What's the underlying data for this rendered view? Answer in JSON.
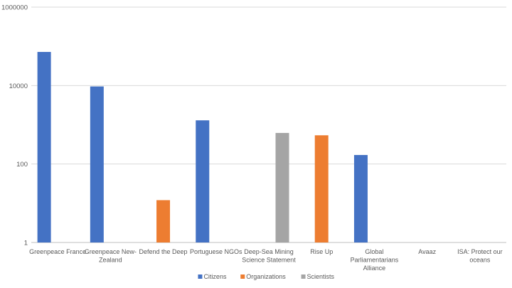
{
  "chart_data": {
    "type": "bar",
    "scale": "log10",
    "title": "",
    "xlabel": "",
    "ylabel": "",
    "ylim": [
      1,
      1000000
    ],
    "y_ticks": [
      "1",
      "100",
      "10000",
      "1000000"
    ],
    "grid": true,
    "legend_position": "bottom",
    "categories": [
      "Greenpeace France",
      "Greenpeace New-Zealand",
      "Defend the Deep",
      "Portuguese NGOs",
      "Deep-Sea Mining Science Statement",
      "Rise Up",
      "Global Parliamentarians Alliance",
      "Avaaz",
      "ISA: Protect our oceans"
    ],
    "category_lines": [
      [
        "Greenpeace France"
      ],
      [
        "Greenpeace New-",
        "Zealand"
      ],
      [
        "Defend the Deep"
      ],
      [
        "Portuguese NGOs"
      ],
      [
        "Deep-Sea Mining",
        "Science Statement"
      ],
      [
        "Rise Up"
      ],
      [
        "Global",
        "Parliamentarians",
        "Alliance"
      ],
      [
        "Avaaz"
      ],
      [
        "ISA: Protect our",
        "oceans"
      ]
    ],
    "series": [
      {
        "name": "Citizens",
        "color": "#4472C4",
        "values": [
          72000,
          9500,
          null,
          1300,
          null,
          null,
          170,
          null,
          null
        ]
      },
      {
        "name": "Organizations",
        "color": "#ED7D31",
        "values": [
          null,
          null,
          12,
          null,
          null,
          540,
          null,
          null,
          null
        ]
      },
      {
        "name": "Scientists",
        "color": "#A5A5A5",
        "values": [
          null,
          null,
          null,
          null,
          620,
          null,
          null,
          null,
          null
        ]
      }
    ]
  }
}
